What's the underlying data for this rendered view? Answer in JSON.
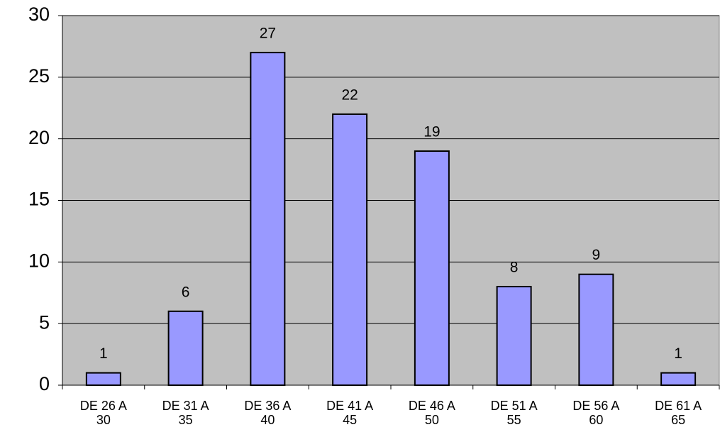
{
  "chart_data": {
    "type": "bar",
    "categories": [
      "DE 26 A 30",
      "DE 31 A 35",
      "DE 36 A 40",
      "DE 41 A 45",
      "DE 46 A 50",
      "DE 51 A 55",
      "DE 56 A 60",
      "DE 61 A 65"
    ],
    "values": [
      1,
      6,
      27,
      22,
      19,
      8,
      9,
      1
    ],
    "color": "#9999ff",
    "ylim": [
      0,
      30
    ],
    "yticks": [
      0,
      5,
      10,
      15,
      20,
      25,
      30
    ],
    "grid": true,
    "plot_background": "#c0c0c0"
  }
}
